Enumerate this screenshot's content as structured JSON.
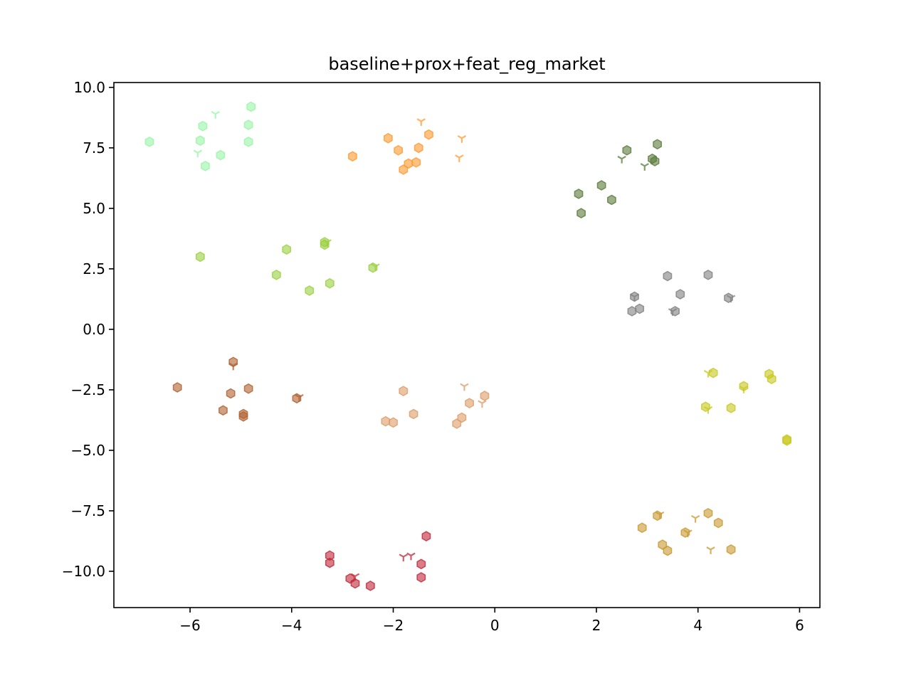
{
  "chart_data": {
    "type": "scatter",
    "title": "baseline+prox+feat_reg_market",
    "xlabel": "",
    "ylabel": "",
    "xlim": [
      -7.5,
      6.4
    ],
    "ylim": [
      -11.5,
      10.2
    ],
    "xticks": [
      -6,
      -4,
      -2,
      0,
      2,
      4,
      6
    ],
    "xtick_labels": [
      "−6",
      "−4",
      "−2",
      "0",
      "2",
      "4",
      "6"
    ],
    "yticks": [
      10.0,
      7.5,
      5.0,
      2.5,
      0.0,
      -2.5,
      -5.0,
      -7.5,
      -10.0
    ],
    "ytick_labels": [
      "10.0",
      "7.5",
      "5.0",
      "2.5",
      "0.0",
      "−2.5",
      "−5.0",
      "−7.5",
      "−10.0"
    ],
    "grid": false,
    "legend": "none",
    "markers": {
      "hexagon": "hexagon",
      "tri": "tri-down"
    },
    "series": [
      {
        "color": "#98f5a8",
        "hexagon": [
          [
            -6.8,
            7.75
          ],
          [
            -5.75,
            8.4
          ],
          [
            -5.8,
            7.8
          ],
          [
            -5.4,
            7.2
          ],
          [
            -5.7,
            6.75
          ],
          [
            -4.85,
            8.45
          ],
          [
            -4.85,
            7.75
          ],
          [
            -4.8,
            9.2
          ]
        ],
        "tri": [
          [
            -5.5,
            8.9
          ],
          [
            -5.85,
            7.3
          ]
        ]
      },
      {
        "color": "#ff9a2e",
        "hexagon": [
          [
            -2.8,
            7.15
          ],
          [
            -2.1,
            7.9
          ],
          [
            -1.9,
            7.4
          ],
          [
            -1.8,
            6.6
          ],
          [
            -1.7,
            6.85
          ],
          [
            -1.55,
            6.9
          ],
          [
            -1.5,
            7.5
          ],
          [
            -1.3,
            8.05
          ]
        ],
        "tri": [
          [
            -1.45,
            8.6
          ],
          [
            -0.65,
            7.9
          ],
          [
            -0.7,
            7.1
          ]
        ]
      },
      {
        "color": "#5a7a3a",
        "hexagon": [
          [
            1.65,
            5.6
          ],
          [
            1.7,
            4.8
          ],
          [
            2.1,
            5.95
          ],
          [
            2.3,
            5.35
          ],
          [
            2.6,
            7.4
          ],
          [
            3.1,
            7.05
          ],
          [
            3.15,
            6.95
          ],
          [
            3.2,
            7.65
          ]
        ],
        "tri": [
          [
            2.5,
            7.05
          ],
          [
            2.95,
            6.75
          ]
        ]
      },
      {
        "color": "#9ad040",
        "hexagon": [
          [
            -5.8,
            3.0
          ],
          [
            -4.3,
            2.25
          ],
          [
            -4.1,
            3.3
          ],
          [
            -3.65,
            1.6
          ],
          [
            -3.35,
            3.5
          ],
          [
            -3.35,
            3.6
          ],
          [
            -3.25,
            1.9
          ],
          [
            -2.4,
            2.55
          ]
        ],
        "tri": [
          [
            -3.3,
            3.6
          ],
          [
            -2.35,
            2.6
          ]
        ]
      },
      {
        "color": "#808080",
        "hexagon": [
          [
            2.7,
            0.75
          ],
          [
            2.75,
            1.35
          ],
          [
            2.85,
            0.85
          ],
          [
            3.4,
            2.2
          ],
          [
            3.55,
            0.75
          ],
          [
            3.65,
            1.45
          ],
          [
            4.2,
            2.25
          ],
          [
            4.6,
            1.3
          ]
        ],
        "tri": [
          [
            2.75,
            1.35
          ],
          [
            3.5,
            0.75
          ],
          [
            4.65,
            1.3
          ]
        ]
      },
      {
        "color": "#b06030",
        "hexagon": [
          [
            -6.25,
            -2.4
          ],
          [
            -5.15,
            -1.35
          ],
          [
            -5.2,
            -2.65
          ],
          [
            -5.35,
            -3.35
          ],
          [
            -4.95,
            -3.5
          ],
          [
            -4.95,
            -3.6
          ],
          [
            -4.85,
            -2.45
          ],
          [
            -3.9,
            -2.85
          ]
        ],
        "tri": [
          [
            -5.15,
            -1.5
          ],
          [
            -3.85,
            -2.8
          ]
        ]
      },
      {
        "color": "#dc9c68",
        "hexagon": [
          [
            -2.15,
            -3.8
          ],
          [
            -2.0,
            -3.85
          ],
          [
            -1.8,
            -2.55
          ],
          [
            -1.6,
            -3.5
          ],
          [
            -0.75,
            -3.9
          ],
          [
            -0.65,
            -3.65
          ],
          [
            -0.5,
            -3.05
          ],
          [
            -0.2,
            -2.75
          ]
        ],
        "tri": [
          [
            -0.6,
            -2.35
          ],
          [
            -0.25,
            -3.05
          ]
        ]
      },
      {
        "color": "#c8c820",
        "hexagon": [
          [
            4.15,
            -3.2
          ],
          [
            4.3,
            -1.8
          ],
          [
            4.65,
            -3.25
          ],
          [
            4.9,
            -2.35
          ],
          [
            5.4,
            -1.85
          ],
          [
            5.45,
            -2.05
          ],
          [
            5.75,
            -4.55
          ],
          [
            5.75,
            -4.6
          ]
        ],
        "tri": [
          [
            4.2,
            -1.8
          ],
          [
            4.2,
            -3.3
          ],
          [
            4.9,
            -2.45
          ]
        ]
      },
      {
        "color": "#c02838",
        "hexagon": [
          [
            -3.25,
            -9.35
          ],
          [
            -3.25,
            -9.65
          ],
          [
            -2.85,
            -10.3
          ],
          [
            -2.75,
            -10.5
          ],
          [
            -2.45,
            -10.6
          ],
          [
            -1.45,
            -9.7
          ],
          [
            -1.45,
            -10.25
          ],
          [
            -1.35,
            -8.55
          ]
        ],
        "tri": [
          [
            -2.75,
            -10.2
          ],
          [
            -1.8,
            -9.4
          ],
          [
            -1.65,
            -9.35
          ]
        ]
      },
      {
        "color": "#c89830",
        "hexagon": [
          [
            2.9,
            -8.2
          ],
          [
            3.2,
            -7.7
          ],
          [
            3.3,
            -8.9
          ],
          [
            3.4,
            -9.15
          ],
          [
            3.75,
            -8.4
          ],
          [
            4.2,
            -7.6
          ],
          [
            4.4,
            -8.0
          ],
          [
            4.65,
            -9.1
          ]
        ],
        "tri": [
          [
            3.25,
            -7.65
          ],
          [
            3.8,
            -8.4
          ],
          [
            3.95,
            -7.8
          ],
          [
            4.25,
            -9.1
          ]
        ]
      }
    ]
  }
}
